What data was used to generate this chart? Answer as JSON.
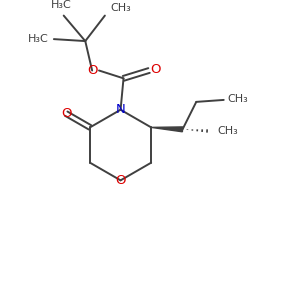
{
  "bg_color": "#ffffff",
  "bond_color": "#404040",
  "o_color": "#dd0000",
  "n_color": "#0000cc",
  "font_size_atom": 9,
  "font_size_group": 8
}
